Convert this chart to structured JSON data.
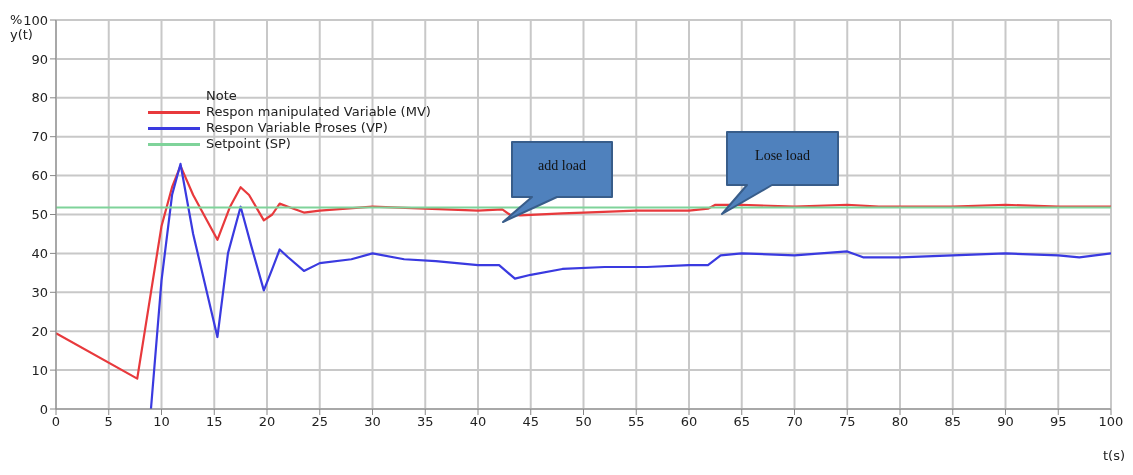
{
  "chart_data": {
    "type": "line",
    "xlabel": "t(s)",
    "ylabel": "% y(t)",
    "legend_title": "Note",
    "legend": "top left",
    "grid": true,
    "marker": "none",
    "line_style": "solid",
    "xlim": [
      0,
      100
    ],
    "xticks": [
      0,
      5,
      10,
      15,
      20,
      25,
      30,
      35,
      40,
      45,
      50,
      55,
      60,
      65,
      70,
      75,
      80,
      85,
      90,
      95,
      100
    ],
    "ylim": [
      0,
      100
    ],
    "yticks": [
      0,
      10,
      20,
      30,
      40,
      50,
      60,
      70,
      80,
      90,
      100
    ],
    "series": [
      {
        "name": "Respon manipulated Variable (MV)",
        "color": "#e8393c",
        "x": [
          0,
          7.7,
          9,
          10,
          11,
          11.8,
          13,
          15.3,
          16.5,
          17.5,
          18.3,
          19.7,
          20.5,
          21.2,
          22,
          23.5,
          25,
          30,
          35,
          40,
          42.3,
          43,
          44,
          48,
          50,
          55,
          60,
          61.8,
          62.5,
          65,
          70,
          75,
          78,
          80,
          85,
          90,
          95,
          100
        ],
        "values": [
          19.5,
          7.8,
          30,
          47,
          57,
          62.5,
          55,
          43.5,
          52,
          57,
          55,
          48.5,
          50,
          52.8,
          52,
          50.5,
          51,
          52,
          51.5,
          51,
          51.3,
          50,
          49.8,
          50.3,
          50.5,
          51,
          51,
          51.5,
          52.5,
          52.5,
          52,
          52.5,
          52,
          52,
          52,
          52.5,
          52,
          52
        ]
      },
      {
        "name": "Respon Variable Proses (VP)",
        "color": "#3a3ae0",
        "x": [
          9,
          10,
          11,
          11.8,
          13,
          15.3,
          16.3,
          17.5,
          18.5,
          19.7,
          20.5,
          21.2,
          22,
          23.5,
          25,
          28,
          30,
          33,
          36,
          40,
          42,
          43.5,
          45,
          48,
          52,
          56,
          60,
          61.8,
          63,
          65,
          70,
          75,
          76.5,
          80,
          85,
          90,
          95,
          97,
          100
        ],
        "values": [
          0,
          33,
          55,
          63,
          45,
          18.5,
          40,
          52,
          42,
          30.5,
          36,
          41,
          39,
          35.5,
          37.5,
          38.5,
          40,
          38.5,
          38,
          37,
          37,
          33.5,
          34.5,
          36,
          36.5,
          36.5,
          37,
          37,
          39.5,
          40,
          39.5,
          40.5,
          39,
          39,
          39.5,
          40,
          39.5,
          39,
          40
        ]
      },
      {
        "name": "Setpoint (SP)",
        "color": "#7fd39a",
        "x": [
          0,
          100
        ],
        "values": [
          51.8,
          51.8
        ]
      }
    ],
    "annotations": [
      "add load",
      "Lose load"
    ]
  }
}
